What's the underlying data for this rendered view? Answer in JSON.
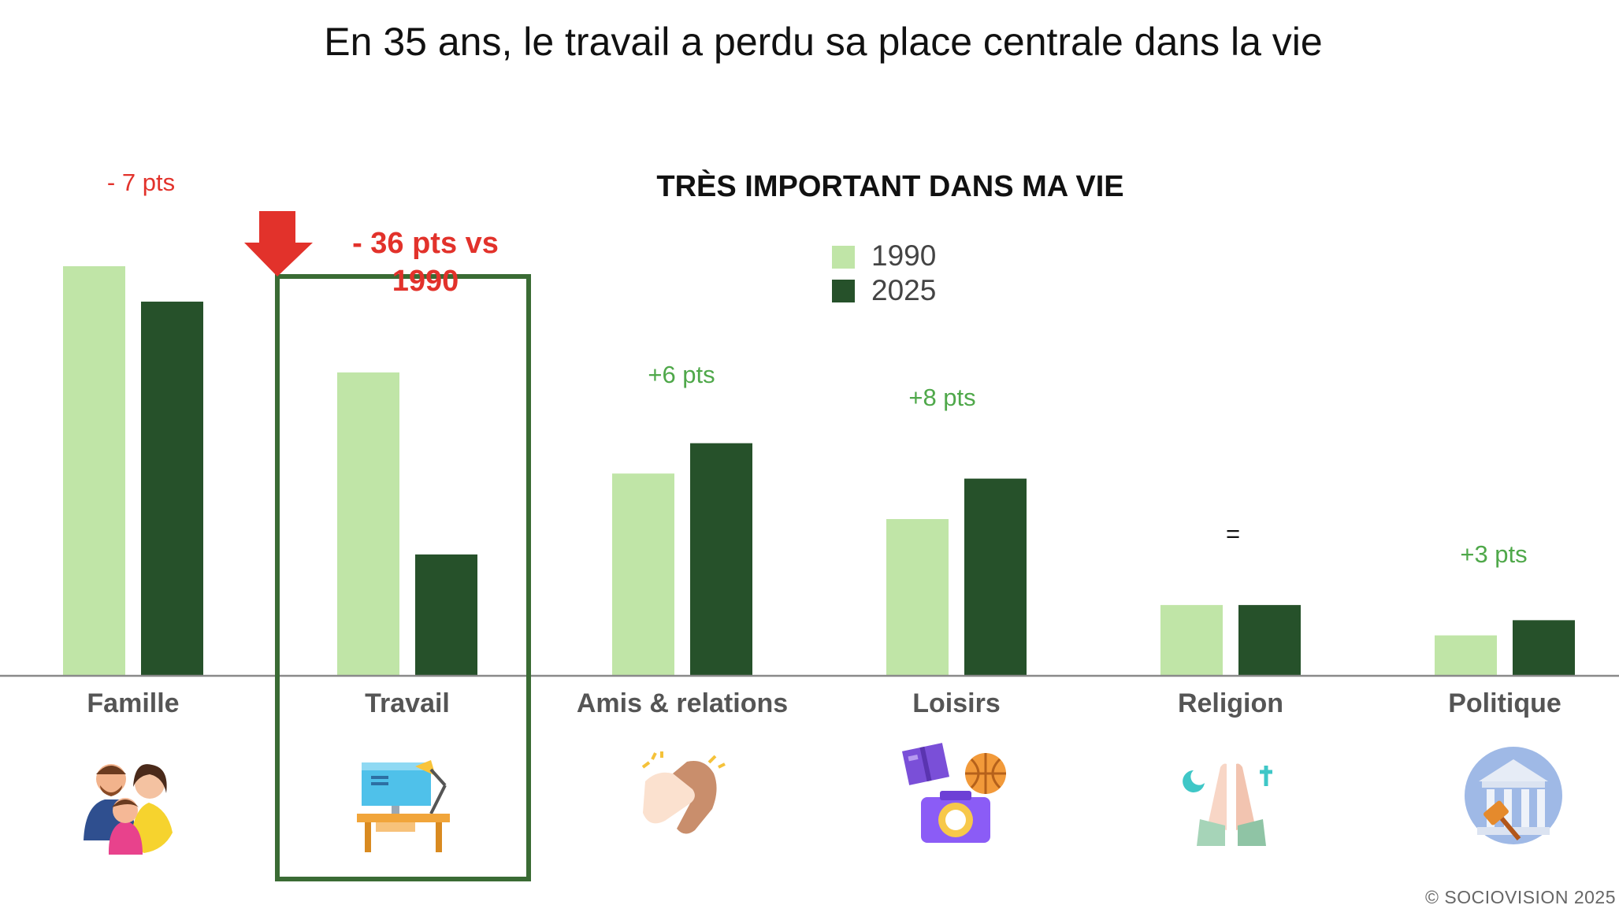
{
  "slide": {
    "title": "En 35 ans, le travail a perdu sa place centrale dans la vie",
    "footer": "© SOCIOVISION  2025"
  },
  "colors": {
    "series_1990": "#c0e5a7",
    "series_2025": "#26512a",
    "highlight": "#3a6b34",
    "negative": "#e2322b",
    "positive": "#4fa84a"
  },
  "annotations": {
    "famille": "- 7 pts",
    "travail": "- 36 pts vs 1990",
    "amis": "+6 pts",
    "loisirs": "+8 pts",
    "religion": "=",
    "politique": "+3 pts"
  },
  "icons": [
    "family-icon",
    "desk-icon",
    "handshake-icon",
    "leisure-icon",
    "praying-hands-icon",
    "courthouse-icon"
  ],
  "chart_data": {
    "type": "bar",
    "title": "TRÈS IMPORTANT DANS MA VIE",
    "categories": [
      "Famille",
      "Travail",
      "Amis & relations",
      "Loisirs",
      "Religion",
      "Politique"
    ],
    "series": [
      {
        "name": "1990",
        "values": [
          81,
          60,
          40,
          31,
          14,
          8
        ]
      },
      {
        "name": "2025",
        "values": [
          74,
          24,
          46,
          39,
          14,
          11
        ]
      }
    ],
    "ylim": [
      0,
      100
    ],
    "grid": false,
    "legend": "top-center",
    "highlight_category": "Travail"
  }
}
